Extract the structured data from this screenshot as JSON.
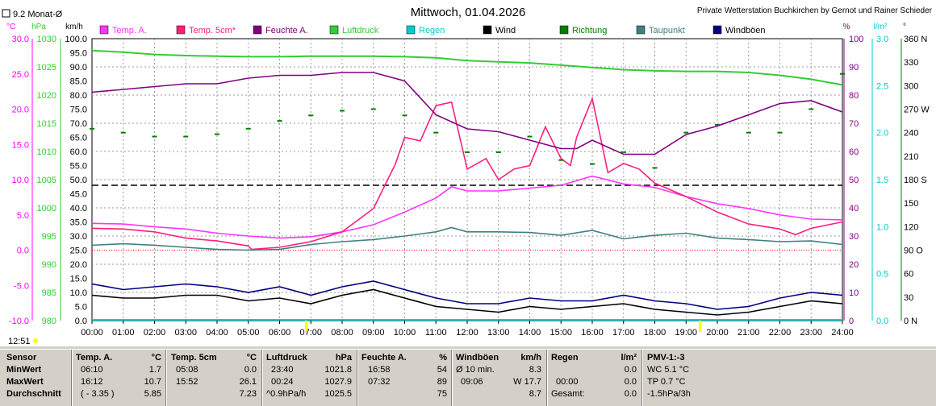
{
  "chart_data": {
    "type": "line",
    "title": "Mittwoch, 01.04.2026",
    "subtitle": "Private Wetterstation Buchkirchen by Gernot und Rainer Schieder",
    "monthly_avg": "9.2 Monat-Ø",
    "current_time": "12:51",
    "x_ticks": [
      "00:00",
      "01:00",
      "02:00",
      "03:00",
      "04:00",
      "05:00",
      "06:00",
      "07:00",
      "08:00",
      "09:00",
      "10:00",
      "11:00",
      "12:00",
      "13:00",
      "14:00",
      "15:00",
      "16:00",
      "17:00",
      "18:00",
      "19:00",
      "20:00",
      "21:00",
      "22:00",
      "23:00",
      "24:00"
    ],
    "x_range": [
      0,
      24
    ],
    "axes": {
      "temp": {
        "unit": "°C",
        "range": [
          -10,
          30
        ],
        "ticks": [
          "30.0",
          "25.0",
          "20.0",
          "15.0",
          "10.0",
          "5.0",
          "0.0",
          "-5.0",
          "-10.0"
        ]
      },
      "pressure": {
        "unit": "hPa",
        "range": [
          980,
          1030
        ],
        "ticks": [
          "1030",
          "1025",
          "1020",
          "1015",
          "1010",
          "1005",
          "1000",
          "995",
          "990",
          "985",
          "980"
        ]
      },
      "wind": {
        "unit": "km/h",
        "range": [
          0,
          100
        ],
        "ticks": [
          "100.0",
          "95.0",
          "90.0",
          "85.0",
          "80.0",
          "75.0",
          "70.0",
          "65.0",
          "60.0",
          "55.0",
          "50.0",
          "45.0",
          "40.0",
          "35.0",
          "30.0",
          "25.0",
          "20.0",
          "15.0",
          "10.0",
          "5.0",
          "0.0"
        ]
      },
      "humidity": {
        "unit": "%",
        "range": [
          0,
          100
        ],
        "ticks": [
          "100",
          "90",
          "80",
          "70",
          "60",
          "50",
          "40",
          "30",
          "20",
          "10",
          "0"
        ]
      },
      "rain": {
        "unit": "l/m²",
        "range": [
          0,
          3
        ],
        "ticks": [
          "3.0",
          "2.5",
          "2.0",
          "1.5",
          "1.0",
          "0.5",
          "0.0"
        ]
      },
      "direction": {
        "unit": "°",
        "range": [
          0,
          360
        ],
        "ticks": [
          "360 N",
          "330",
          "300",
          "270 W",
          "240",
          "210",
          "180 S",
          "150",
          "120",
          "90 O",
          "60",
          "30",
          "0 N"
        ]
      }
    },
    "legend": [
      {
        "name": "Temp. A.",
        "color": "#ff33ff"
      },
      {
        "name": "Temp. 5cm*",
        "color": "#ff1f7a"
      },
      {
        "name": "Feuchte A.",
        "color": "#800080"
      },
      {
        "name": "Luftdruck",
        "color": "#33cc33"
      },
      {
        "name": "Regen",
        "color": "#00cccc"
      },
      {
        "name": "Wind",
        "color": "#000000"
      },
      {
        "name": "Richtung",
        "color": "#008000"
      },
      {
        "name": "Taupunkt",
        "color": "#408080"
      },
      {
        "name": "Windböen",
        "color": "#000080"
      }
    ],
    "series": [
      {
        "name": "Temp. A.",
        "axis": "temp",
        "color": "#ff33ff",
        "x": [
          0,
          1,
          2,
          3,
          4,
          5,
          6,
          7,
          8,
          9,
          10,
          11,
          11.5,
          12,
          13,
          14,
          15,
          16,
          17,
          18,
          19,
          20,
          21,
          22,
          23,
          24
        ],
        "y": [
          3.8,
          3.7,
          3.3,
          3.0,
          2.4,
          2.0,
          1.7,
          1.9,
          2.6,
          3.6,
          5.4,
          7.4,
          9.0,
          8.4,
          8.4,
          8.8,
          9.2,
          10.5,
          9.4,
          8.9,
          7.6,
          6.6,
          5.9,
          5.0,
          4.4,
          4.3
        ]
      },
      {
        "name": "Temp. 5cm*",
        "axis": "temp",
        "color": "#ff1f7a",
        "x": [
          0,
          1,
          2,
          3,
          4,
          5,
          5.1,
          6,
          7,
          8,
          9,
          9.7,
          10,
          10.5,
          11,
          11.5,
          12,
          12.6,
          13,
          13.5,
          14,
          14.5,
          15,
          15.3,
          15.5,
          16,
          16.5,
          17,
          17.5,
          18,
          19,
          20,
          21,
          22,
          22.5,
          23,
          24
        ],
        "y": [
          3.1,
          3.0,
          2.6,
          1.7,
          1.3,
          0.6,
          0.1,
          0.4,
          1.2,
          2.6,
          5.9,
          12.2,
          16.0,
          15.5,
          20.5,
          21.0,
          11.5,
          13.0,
          10.0,
          11.5,
          12.0,
          17.5,
          13.0,
          12.0,
          16.0,
          21.5,
          11.0,
          12.3,
          11.5,
          9.5,
          7.6,
          5.4,
          3.7,
          3.0,
          2.2,
          3.1,
          4.0
        ]
      },
      {
        "name": "Feuchte A.",
        "axis": "humidity",
        "color": "#800080",
        "x": [
          0,
          1,
          2,
          3,
          4,
          5,
          6,
          7,
          8,
          9,
          10,
          11,
          12,
          13,
          14,
          15,
          15.5,
          16,
          17,
          18,
          19,
          20,
          21,
          22,
          23,
          24
        ],
        "y": [
          81,
          82,
          83,
          84,
          84,
          86,
          87,
          87,
          88,
          88,
          85,
          73,
          68,
          67,
          64,
          61,
          61,
          64,
          59,
          59,
          66,
          69,
          73,
          77,
          78,
          74
        ]
      },
      {
        "name": "Luftdruck",
        "axis": "pressure",
        "color": "#33cc33",
        "x": [
          0,
          1,
          2,
          3,
          4,
          5,
          6,
          7,
          8,
          9,
          10,
          11,
          12,
          13,
          14,
          15,
          16,
          17,
          18,
          19,
          20,
          21,
          22,
          23,
          24
        ],
        "y": [
          1027.9,
          1027.6,
          1027.2,
          1027.0,
          1026.9,
          1026.8,
          1026.8,
          1026.9,
          1026.9,
          1026.9,
          1026.8,
          1026.6,
          1026.1,
          1025.9,
          1025.7,
          1025.3,
          1024.9,
          1024.5,
          1024.3,
          1024.2,
          1024.2,
          1024.0,
          1023.5,
          1022.8,
          1021.8
        ]
      },
      {
        "name": "Taupunkt",
        "axis": "temp",
        "color": "#408080",
        "x": [
          0,
          1,
          2,
          3,
          4,
          5,
          6,
          7,
          8,
          9,
          10,
          11,
          11.5,
          12,
          13,
          14,
          15,
          16,
          17,
          18,
          19,
          20,
          21,
          22,
          23,
          24
        ],
        "y": [
          0.7,
          0.9,
          0.7,
          0.4,
          0.1,
          0.0,
          0.1,
          0.8,
          1.2,
          1.5,
          2.0,
          2.6,
          3.2,
          2.6,
          2.6,
          2.5,
          2.1,
          2.8,
          1.6,
          2.1,
          2.4,
          1.7,
          1.5,
          1.2,
          1.3,
          0.8
        ]
      },
      {
        "name": "Windböen",
        "axis": "wind",
        "color": "#000080",
        "x": [
          0,
          1,
          2,
          3,
          4,
          5,
          6,
          7,
          8,
          9,
          10,
          11,
          12,
          13,
          14,
          15,
          16,
          17,
          18,
          19,
          20,
          21,
          22,
          23,
          24
        ],
        "y": [
          13,
          11,
          12,
          13,
          12,
          10,
          12,
          9,
          12,
          14,
          11,
          8,
          6,
          6,
          8,
          7,
          7,
          9,
          7,
          6,
          4,
          5,
          8,
          10,
          9
        ]
      },
      {
        "name": "Wind",
        "axis": "wind",
        "color": "#000000",
        "x": [
          0,
          1,
          2,
          3,
          4,
          5,
          6,
          7,
          8,
          9,
          10,
          11,
          12,
          13,
          14,
          15,
          16,
          17,
          18,
          19,
          20,
          21,
          22,
          23,
          24
        ],
        "y": [
          9,
          8,
          8,
          9,
          9,
          7,
          8,
          6,
          9,
          11,
          8,
          5,
          4,
          3,
          5,
          4,
          5,
          6,
          4,
          3,
          2,
          3,
          5,
          7,
          6
        ]
      },
      {
        "name": "Richtung",
        "axis": "direction",
        "color": "#008000",
        "x": [
          0,
          1,
          2,
          3,
          4,
          5,
          6,
          7,
          8,
          9,
          10,
          11,
          12,
          13,
          14,
          15,
          16,
          17,
          18,
          19,
          20,
          21,
          22,
          23,
          24
        ],
        "y": [
          245,
          240,
          235,
          235,
          238,
          245,
          255,
          262,
          268,
          270,
          262,
          240,
          215,
          215,
          235,
          205,
          200,
          215,
          195,
          240,
          250,
          240,
          240,
          270,
          315
        ]
      }
    ],
    "reference_lines": [
      {
        "name": "monthly_avg",
        "axis": "temp",
        "value": 9.2,
        "style": "dashed",
        "color": "#000000"
      },
      {
        "name": "zero",
        "axis": "temp",
        "value": 0,
        "style": "dotted",
        "color": "#ff0000"
      }
    ]
  },
  "stats": {
    "col_sensor": {
      "header": "Sensor",
      "rows": [
        "MinWert",
        "MaxWert",
        "Durchschnitt"
      ]
    },
    "col_temp_a": {
      "header": "Temp. A.",
      "unit": "°C",
      "rows": [
        [
          "06:10",
          "1.7"
        ],
        [
          "16:12",
          "10.7"
        ],
        [
          "( - 3.35 )",
          "5.85"
        ]
      ]
    },
    "col_temp_5cm": {
      "header": "Temp. 5cm",
      "unit": "°C",
      "rows": [
        [
          "05:08",
          "0.0"
        ],
        [
          "15:52",
          "26.1"
        ],
        [
          "",
          "7.23"
        ]
      ]
    },
    "col_pressure": {
      "header": "Luftdruck",
      "unit": "hPa",
      "rows": [
        [
          "23:40",
          "1021.8"
        ],
        [
          "00:24",
          "1027.9"
        ],
        [
          "^0.9hPa/h",
          "1025.5"
        ]
      ]
    },
    "col_humidity": {
      "header": "Feuchte A.",
      "unit": "%",
      "rows": [
        [
          "16:58",
          "54"
        ],
        [
          "07:32",
          "89"
        ],
        [
          "",
          "75"
        ]
      ]
    },
    "col_gusts": {
      "header": "Windböen",
      "unit": "km/h",
      "rows": [
        [
          "Ø 10 min.",
          "8.3"
        ],
        [
          "09:06",
          "W 17.7"
        ],
        [
          "",
          "8.7"
        ]
      ]
    },
    "col_rain": {
      "header": "Regen",
      "unit": "l/m²",
      "rows": [
        [
          "",
          "0.0"
        ],
        [
          "00:00",
          "0.0"
        ],
        [
          "Gesamt:",
          "0.0"
        ]
      ]
    },
    "col_pmv": {
      "header": "PMV-1:-3",
      "rows": [
        "WC 5.1 °C",
        "TP 0.7 °C",
        "-1.5hPa/3h"
      ]
    }
  }
}
